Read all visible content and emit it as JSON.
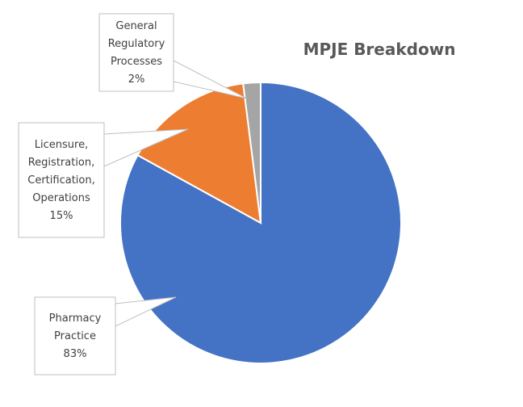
{
  "chart_data": {
    "type": "pie",
    "title": "MPJE Breakdown",
    "slices": [
      {
        "name": "Pharmacy Practice",
        "value": 83,
        "label": "83%",
        "label_lines": [
          "Pharmacy",
          "Practice",
          "83%"
        ],
        "color": "#4472C4"
      },
      {
        "name": "Licensure, Registration, Certification, Operations",
        "value": 15,
        "label": "15%",
        "label_lines": [
          "Licensure,",
          "Registration,",
          "Certification,",
          "Operations",
          "15%"
        ],
        "color": "#ED7D31"
      },
      {
        "name": "General Regulatory Processes",
        "value": 2,
        "label": "2%",
        "label_lines": [
          "General",
          "Regulatory",
          "Processes",
          "2%"
        ],
        "color": "#A5A5A5"
      }
    ],
    "start_angle_deg": 0,
    "direction": "clockwise",
    "legend": "none",
    "data_labels": "callouts"
  }
}
